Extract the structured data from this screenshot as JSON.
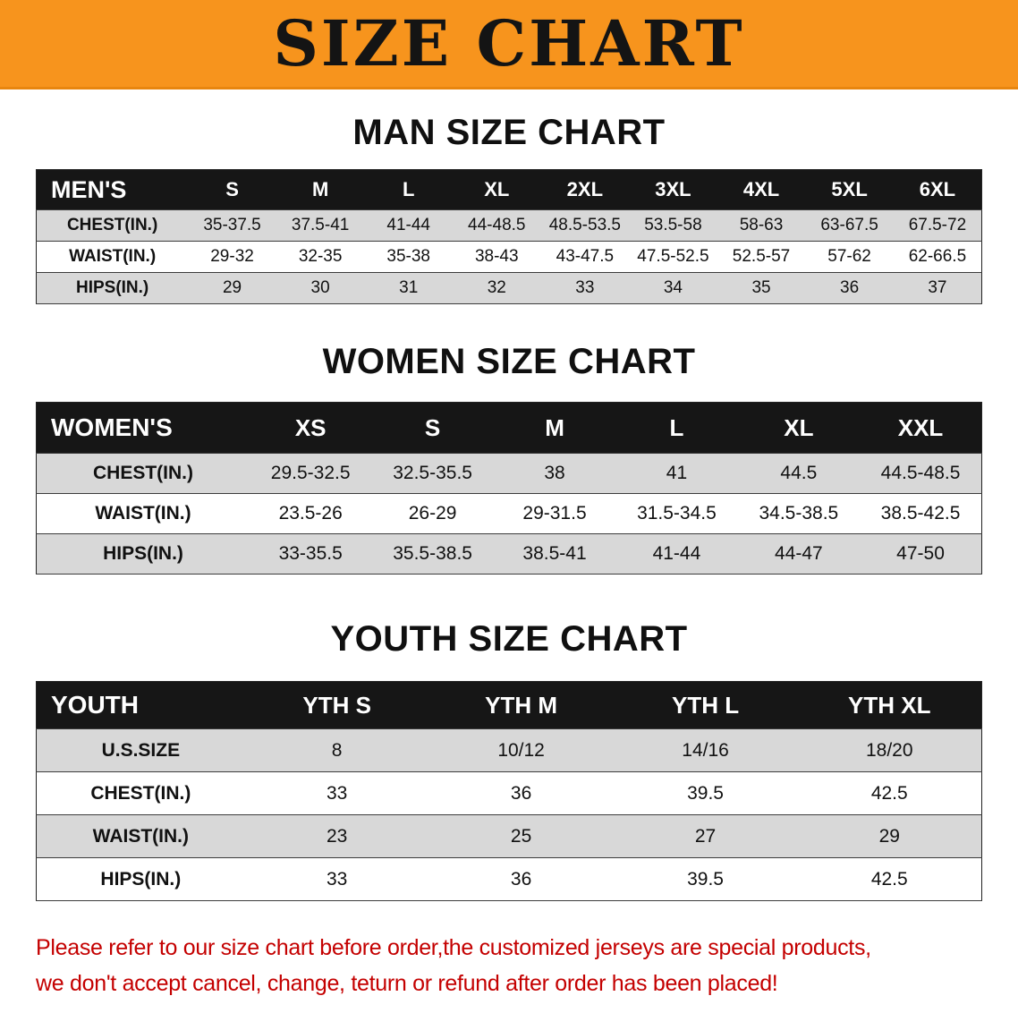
{
  "banner": {
    "title": "SIZE CHART",
    "bg_color": "#f7941d",
    "text_color": "#141414"
  },
  "colors": {
    "table_header_bg": "#161616",
    "table_header_text": "#ffffff",
    "stripe_row": "#d8d8d8",
    "footer_text": "#c40000"
  },
  "sections": [
    {
      "heading": "MAN SIZE CHART",
      "table": {
        "header": [
          "MEN'S",
          "S",
          "M",
          "L",
          "XL",
          "2XL",
          "3XL",
          "4XL",
          "5XL",
          "6XL"
        ],
        "rows": [
          {
            "label": "CHEST(IN.)",
            "values": [
              "35-37.5",
              "37.5-41",
              "41-44",
              "44-48.5",
              "48.5-53.5",
              "53.5-58",
              "58-63",
              "63-67.5",
              "67.5-72"
            ]
          },
          {
            "label": "WAIST(IN.)",
            "values": [
              "29-32",
              "32-35",
              "35-38",
              "38-43",
              "43-47.5",
              "47.5-52.5",
              "52.5-57",
              "57-62",
              "62-66.5"
            ]
          },
          {
            "label": "HIPS(IN.)",
            "values": [
              "29",
              "30",
              "31",
              "32",
              "33",
              "34",
              "35",
              "36",
              "37"
            ]
          }
        ]
      }
    },
    {
      "heading": "WOMEN SIZE CHART",
      "table": {
        "header": [
          "WOMEN'S",
          "XS",
          "S",
          "M",
          "L",
          "XL",
          "XXL"
        ],
        "rows": [
          {
            "label": "CHEST(IN.)",
            "values": [
              "29.5-32.5",
              "32.5-35.5",
              "38",
              "41",
              "44.5",
              "44.5-48.5"
            ]
          },
          {
            "label": "WAIST(IN.)",
            "values": [
              "23.5-26",
              "26-29",
              "29-31.5",
              "31.5-34.5",
              "34.5-38.5",
              "38.5-42.5"
            ]
          },
          {
            "label": "HIPS(IN.)",
            "values": [
              "33-35.5",
              "35.5-38.5",
              "38.5-41",
              "41-44",
              "44-47",
              "47-50"
            ]
          }
        ]
      }
    },
    {
      "heading": "YOUTH SIZE CHART",
      "table": {
        "header": [
          "YOUTH",
          "YTH S",
          "YTH M",
          "YTH L",
          "YTH XL"
        ],
        "rows": [
          {
            "label": "U.S.SIZE",
            "values": [
              "8",
              "10/12",
              "14/16",
              "18/20"
            ]
          },
          {
            "label": "CHEST(IN.)",
            "values": [
              "33",
              "36",
              "39.5",
              "42.5"
            ]
          },
          {
            "label": "WAIST(IN.)",
            "values": [
              "23",
              "25",
              "27",
              "29"
            ]
          },
          {
            "label": "HIPS(IN.)",
            "values": [
              "33",
              "36",
              "39.5",
              "42.5"
            ]
          }
        ]
      }
    }
  ],
  "footer": {
    "line1": "Please refer to our size chart before order,the customized jerseys are special products,",
    "line2": "we don't accept cancel, change, teturn or refund after order has been placed!"
  }
}
